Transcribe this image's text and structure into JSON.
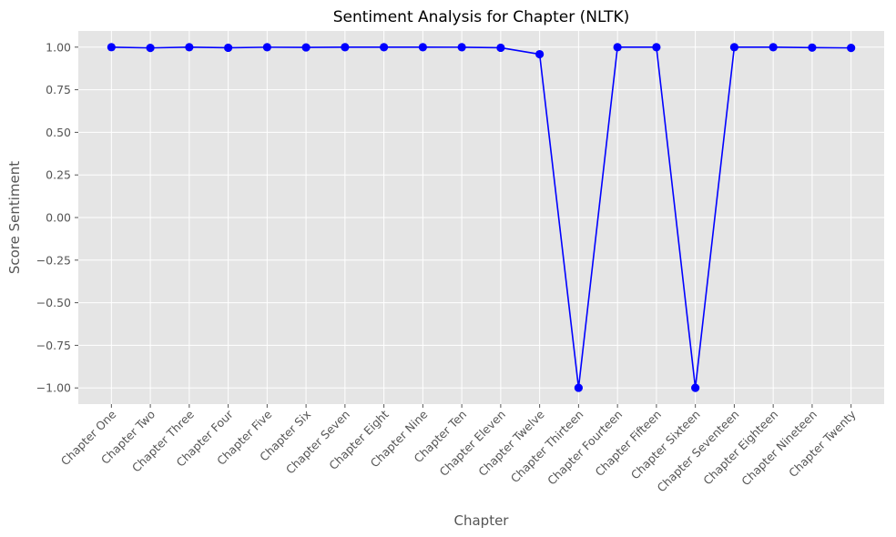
{
  "chart_data": {
    "type": "line",
    "title": "Sentiment Analysis for Chapter (NLTK)",
    "xlabel": "Chapter",
    "ylabel": "Score Sentiment",
    "categories": [
      "Chapter One",
      "Chapter Two",
      "Chapter Three",
      "Chapter Four",
      "Chapter Five",
      "Chapter Six",
      "Chapter Seven",
      "Chapter Eight",
      "Chapter Nine",
      "Chapter Ten",
      "Chapter Eleven",
      "Chapter Twelve",
      "Chapter Thirteen",
      "Chapter Fourteen",
      "Chapter Fifteen",
      "Chapter Sixteen",
      "Chapter Seventeen",
      "Chapter Eighteen",
      "Chapter Nineteen",
      "Chapter Twenty"
    ],
    "series": [
      {
        "values": [
          0.9998,
          0.9955,
          0.9997,
          0.9965,
          0.9995,
          0.9985,
          0.9997,
          0.9996,
          0.9997,
          0.9995,
          0.9965,
          0.9585,
          -0.9993,
          0.9998,
          0.9996,
          -0.9994,
          0.9998,
          0.9997,
          0.9972,
          0.9955
        ],
        "color": "#0000ff"
      }
    ],
    "ylim": [
      -1.095,
      1.095
    ],
    "yticks": [
      1.0,
      0.75,
      0.5,
      0.25,
      0.0,
      -0.25,
      -0.5,
      -0.75,
      -1.0
    ],
    "ytick_labels": [
      "1.00",
      "0.75",
      "0.50",
      "0.25",
      "0.00",
      "−0.25",
      "−0.50",
      "−0.75",
      "−1.00"
    ],
    "grid": true,
    "background": "#e5e5e5"
  }
}
